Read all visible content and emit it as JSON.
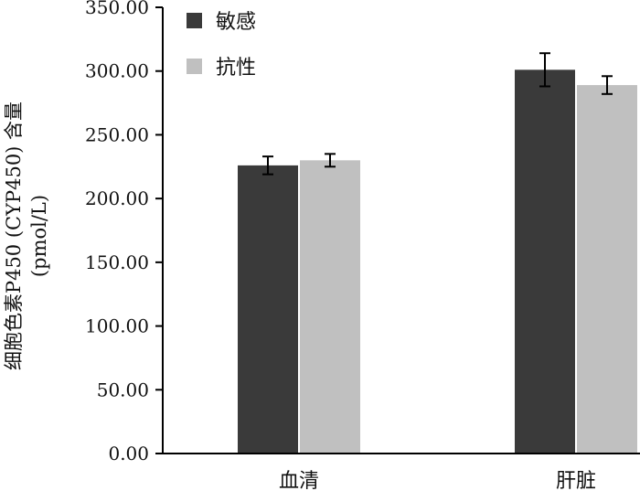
{
  "chart_data": {
    "type": "bar",
    "categories": [
      "血清",
      "肝脏"
    ],
    "series": [
      {
        "name": "敏感",
        "values": [
          226,
          301
        ],
        "errors": [
          7,
          13
        ],
        "color": "#3a3a3a"
      },
      {
        "name": "抗性",
        "values": [
          230,
          289
        ],
        "errors": [
          5,
          7
        ],
        "color": "#c0c0c0"
      }
    ],
    "ylabel_lines": [
      "细胞色素P450 (CYP450) 含量",
      "(pmol/L)"
    ],
    "ylim": [
      0,
      350
    ],
    "yticks": [
      0,
      50,
      100,
      150,
      200,
      250,
      300,
      350
    ],
    "ytick_labels": [
      "0.00",
      "50.00",
      "100.00",
      "150.00",
      "200.00",
      "250.00",
      "300.00",
      "350.00"
    ],
    "legend_position": "top-left",
    "grid": false
  }
}
